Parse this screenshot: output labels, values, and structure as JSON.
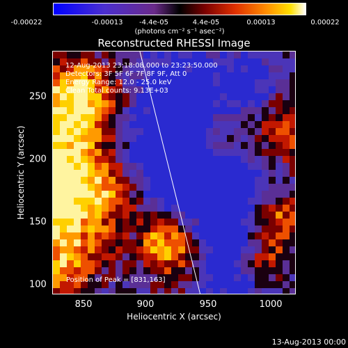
{
  "colorbar": {
    "ticks": [
      "-0.00022",
      "-0.00013",
      "-4.4e-05",
      "4.4e-05",
      "0.00013",
      "0.00022"
    ],
    "unit_label": "(photons cm⁻² s⁻¹ asec⁻²)"
  },
  "title": "Reconstructed RHESSI Image",
  "info": {
    "line1": "12-Aug-2013 23:18:08.000 to 23:23:50.000",
    "line2": "Detectors: 3F 5F 6F 7F 8F 9F, Att 0",
    "line3": "Energy Range: 12.0 - 25.0 keV",
    "line4": "Clean     Total counts: 9.13E+03"
  },
  "peak_label": "Position of Peak = [831,163]",
  "axes": {
    "xlabel": "Heliocentric X (arcsec)",
    "ylabel": "Heliocentric Y (arcsec)",
    "xticks": [
      "850",
      "900",
      "950",
      "1000"
    ],
    "yticks": [
      "250",
      "200",
      "150",
      "100"
    ]
  },
  "date_stamp": "13-Aug-2013 00:00",
  "chart_data": {
    "type": "heatmap",
    "title": "Reconstructed RHESSI Image",
    "xlabel": "Heliocentric X (arcsec)",
    "ylabel": "Heliocentric Y (arcsec)",
    "xlim": [
      825,
      1020
    ],
    "ylim": [
      95,
      290
    ],
    "colorbar_range": [
      -0.00022,
      0.00022
    ],
    "peak": [
      831,
      163
    ]
  }
}
